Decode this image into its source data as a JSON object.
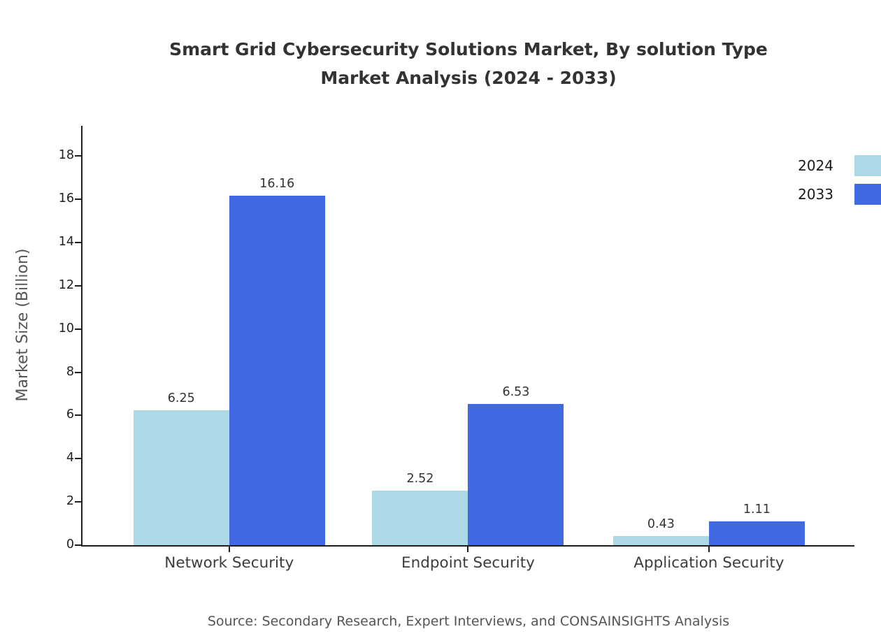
{
  "title": {
    "line1": "Smart Grid Cybersecurity Solutions Market, By solution Type",
    "line2": "Market Analysis (2024 - 2033)"
  },
  "source": "Source: Secondary Research, Expert Interviews, and CONSAINSIGHTS Analysis",
  "chart_data": {
    "type": "bar",
    "title": "Smart Grid Cybersecurity Solutions Market, By solution Type Market Analysis (2024 - 2033)",
    "categories": [
      "Network Security",
      "Endpoint Security",
      "Application Security"
    ],
    "series": [
      {
        "name": "2024",
        "color": "#ADD8E6",
        "values": [
          6.25,
          2.52,
          0.43
        ]
      },
      {
        "name": "2033",
        "color": "#4169E1",
        "values": [
          16.16,
          6.53,
          1.11
        ]
      }
    ],
    "xlabel": "",
    "ylabel": "Market Size (Billion)",
    "yticks": [
      0,
      2,
      4,
      6,
      8,
      10,
      12,
      14,
      16,
      18
    ],
    "ylim": [
      0,
      19.4
    ],
    "grid": false,
    "value_labels": true,
    "legend_position": "top-right"
  }
}
